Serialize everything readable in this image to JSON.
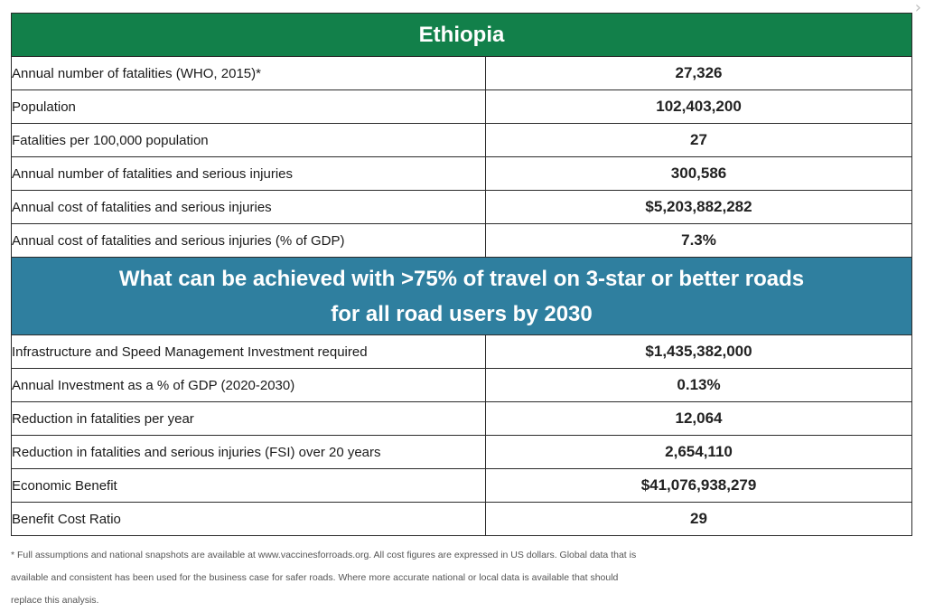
{
  "scroll_indicator": "›",
  "table": {
    "title": "Ethiopia",
    "section_heading_line1": "What can be achieved with >75% of travel on 3-star or better roads",
    "section_heading_line2": "for all road users by 2030",
    "top_rows": [
      {
        "label": "Annual number of fatalities (WHO, 2015)*",
        "value": "27,326"
      },
      {
        "label": "Population",
        "value": "102,403,200"
      },
      {
        "label": "Fatalities per 100,000 population",
        "value": "27"
      },
      {
        "label": "Annual number of fatalities and serious injuries",
        "value": "300,586"
      },
      {
        "label": "Annual cost of fatalities and serious injuries",
        "value": "$5,203,882,282"
      },
      {
        "label": "Annual cost of fatalities and serious injuries (% of GDP)",
        "value": "7.3%"
      }
    ],
    "bottom_rows": [
      {
        "label": "Infrastructure and Speed Management Investment required",
        "value": "$1,435,382,000"
      },
      {
        "label": "Annual Investment as a % of GDP (2020-2030)",
        "value": "0.13%"
      },
      {
        "label": "Reduction in fatalities per year",
        "value": "12,064"
      },
      {
        "label": "Reduction in fatalities and serious injuries (FSI) over 20 years",
        "value": "2,654,110"
      },
      {
        "label": "Economic Benefit",
        "value": "$41,076,938,279"
      },
      {
        "label": "Benefit Cost Ratio",
        "value": "29"
      }
    ]
  },
  "footnote": {
    "line1": "* Full assumptions and national snapshots are available at www.vaccinesforroads.org. All cost figures are expressed in US dollars. Global data that is",
    "line2": "available and consistent has been used for the business case for safer roads. Where more accurate national or local data is available that should",
    "line3": "replace this analysis."
  },
  "colors": {
    "title_bg": "#12804a",
    "section_bg": "#2f7f9f"
  }
}
